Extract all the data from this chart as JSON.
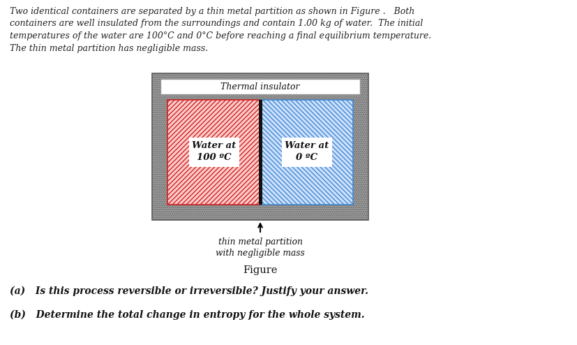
{
  "bg_color": "#ffffff",
  "paragraph_text_lines": [
    "Two identical containers are separated by a thin metal partition as shown in Figure .   Both",
    "containers are well insulated from the surroundings and contain 1.00 kg of water.  The initial",
    "temperatures of the water are 100°C and 0°C before reaching a final equilibrium temperature.",
    "The thin metal partition has negligible mass."
  ],
  "figure_label": "Figure",
  "question_a": "(a)   Is this process reversible or irreversible? Justify your answer.",
  "question_b": "(b)   Determine the total change in entropy for the whole system.",
  "thermal_insulator_label": "Thermal insulator",
  "water_hot_label": "Water at\n100 ºC",
  "water_cold_label": "Water at\n0 ºC",
  "partition_label_line1": "thin metal partition",
  "partition_label_line2": "with negligible mass",
  "outer_gray": "#999999",
  "hot_hatch_color": "#cc2222",
  "cold_hatch_color": "#4488cc",
  "partition_color": "#111111",
  "text_color": "#222222"
}
